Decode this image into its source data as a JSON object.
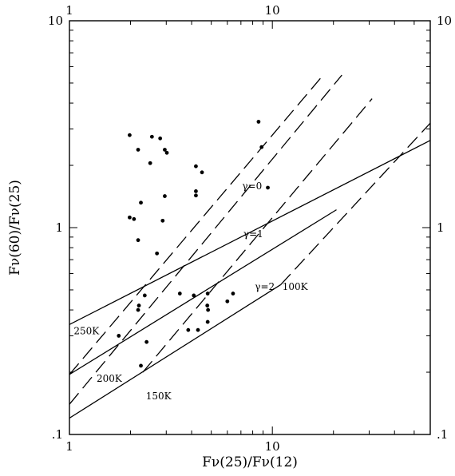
{
  "chart_data": {
    "type": "scatter",
    "title": "",
    "xlabel": "Fν(25)/Fν(12)",
    "ylabel": "Fν(60)/Fν(25)",
    "xscale": "log",
    "yscale": "log",
    "xlim": [
      1,
      60
    ],
    "ylim": [
      0.1,
      10
    ],
    "x_tick_labels": [
      {
        "value": 1,
        "label": "1"
      },
      {
        "value": 10,
        "label": "10"
      }
    ],
    "y_tick_labels": [
      {
        "value": 0.1,
        "label": ".1"
      },
      {
        "value": 1,
        "label": "1"
      },
      {
        "value": 10,
        "label": "10"
      }
    ],
    "points": [
      [
        1.98,
        2.8
      ],
      [
        2.18,
        2.38
      ],
      [
        2.55,
        2.75
      ],
      [
        2.8,
        2.7
      ],
      [
        2.95,
        2.38
      ],
      [
        3.02,
        2.3
      ],
      [
        2.5,
        2.05
      ],
      [
        2.25,
        1.32
      ],
      [
        2.95,
        1.42
      ],
      [
        1.98,
        1.12
      ],
      [
        2.08,
        1.1
      ],
      [
        2.88,
        1.08
      ],
      [
        2.18,
        0.87
      ],
      [
        2.7,
        0.75
      ],
      [
        4.2,
        1.98
      ],
      [
        4.5,
        1.85
      ],
      [
        4.2,
        1.5
      ],
      [
        4.2,
        1.43
      ],
      [
        8.55,
        3.25
      ],
      [
        8.85,
        2.45
      ],
      [
        9.5,
        1.56
      ],
      [
        2.35,
        0.47
      ],
      [
        3.5,
        0.48
      ],
      [
        4.8,
        0.48
      ],
      [
        6.4,
        0.48
      ],
      [
        2.2,
        0.42
      ],
      [
        2.18,
        0.4
      ],
      [
        4.78,
        0.42
      ],
      [
        4.82,
        0.4
      ],
      [
        4.1,
        0.47
      ],
      [
        6.0,
        0.44
      ],
      [
        1.75,
        0.3
      ],
      [
        2.4,
        0.28
      ],
      [
        3.85,
        0.32
      ],
      [
        4.3,
        0.32
      ],
      [
        4.8,
        0.35
      ],
      [
        2.25,
        0.215
      ]
    ],
    "solid_lines": [
      {
        "label": "γ=0",
        "label_at": [
          7.1,
          1.53
        ],
        "from": [
          1,
          0.34
        ],
        "to": [
          60,
          2.64
        ]
      },
      {
        "label": "γ=1",
        "label_at": [
          7.2,
          0.9
        ],
        "from": [
          1,
          0.195
        ],
        "to": [
          20.7,
          1.22
        ]
      },
      {
        "label": "γ=2",
        "label_at": [
          8.2,
          0.5
        ],
        "from": [
          1,
          0.12
        ],
        "to": [
          11.0,
          0.53
        ]
      }
    ],
    "dashed_lines": [
      {
        "label": "250K",
        "label_at": [
          1.05,
          0.305
        ],
        "from": [
          1,
          0.195
        ],
        "to": [
          17.8,
          5.46
        ]
      },
      {
        "label": "200K",
        "label_at": [
          1.36,
          0.18
        ],
        "from": [
          1,
          0.14
        ],
        "to": [
          22.0,
          5.46
        ]
      },
      {
        "label": "150K",
        "label_at": [
          2.38,
          0.148
        ],
        "from": [
          2.3,
          0.2
        ],
        "to": [
          31.0,
          4.2
        ]
      },
      {
        "label": "100K",
        "label_at": [
          11.2,
          0.5
        ],
        "from": [
          11.0,
          0.53
        ],
        "to": [
          60.0,
          3.2
        ]
      }
    ]
  }
}
